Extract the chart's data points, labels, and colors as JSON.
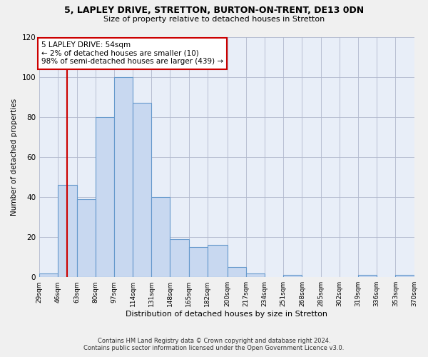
{
  "title": "5, LAPLEY DRIVE, STRETTON, BURTON-ON-TRENT, DE13 0DN",
  "subtitle": "Size of property relative to detached houses in Stretton",
  "xlabel": "Distribution of detached houses by size in Stretton",
  "ylabel": "Number of detached properties",
  "bar_edges": [
    29,
    46,
    63,
    80,
    97,
    114,
    131,
    148,
    165,
    182,
    200,
    217,
    234,
    251,
    268,
    285,
    302,
    319,
    336,
    353,
    370
  ],
  "bar_heights": [
    2,
    46,
    39,
    80,
    100,
    87,
    40,
    19,
    15,
    16,
    5,
    2,
    0,
    1,
    0,
    0,
    0,
    1,
    0,
    1
  ],
  "bar_color": "#c8d8f0",
  "bar_edgecolor": "#6699cc",
  "property_line_x": 54,
  "property_line_color": "#cc0000",
  "annotation_title": "5 LAPLEY DRIVE: 54sqm",
  "annotation_line1": "← 2% of detached houses are smaller (10)",
  "annotation_line2": "98% of semi-detached houses are larger (439) →",
  "annotation_edgecolor": "#cc0000",
  "ylim": [
    0,
    120
  ],
  "yticks": [
    0,
    20,
    40,
    60,
    80,
    100,
    120
  ],
  "tick_labels": [
    "29sqm",
    "46sqm",
    "63sqm",
    "80sqm",
    "97sqm",
    "114sqm",
    "131sqm",
    "148sqm",
    "165sqm",
    "182sqm",
    "200sqm",
    "217sqm",
    "234sqm",
    "251sqm",
    "268sqm",
    "285sqm",
    "302sqm",
    "319sqm",
    "336sqm",
    "353sqm",
    "370sqm"
  ],
  "footer_line1": "Contains HM Land Registry data © Crown copyright and database right 2024.",
  "footer_line2": "Contains public sector information licensed under the Open Government Licence v3.0.",
  "background_color": "#f0f0f0",
  "plot_bg_color": "#e8eef8"
}
